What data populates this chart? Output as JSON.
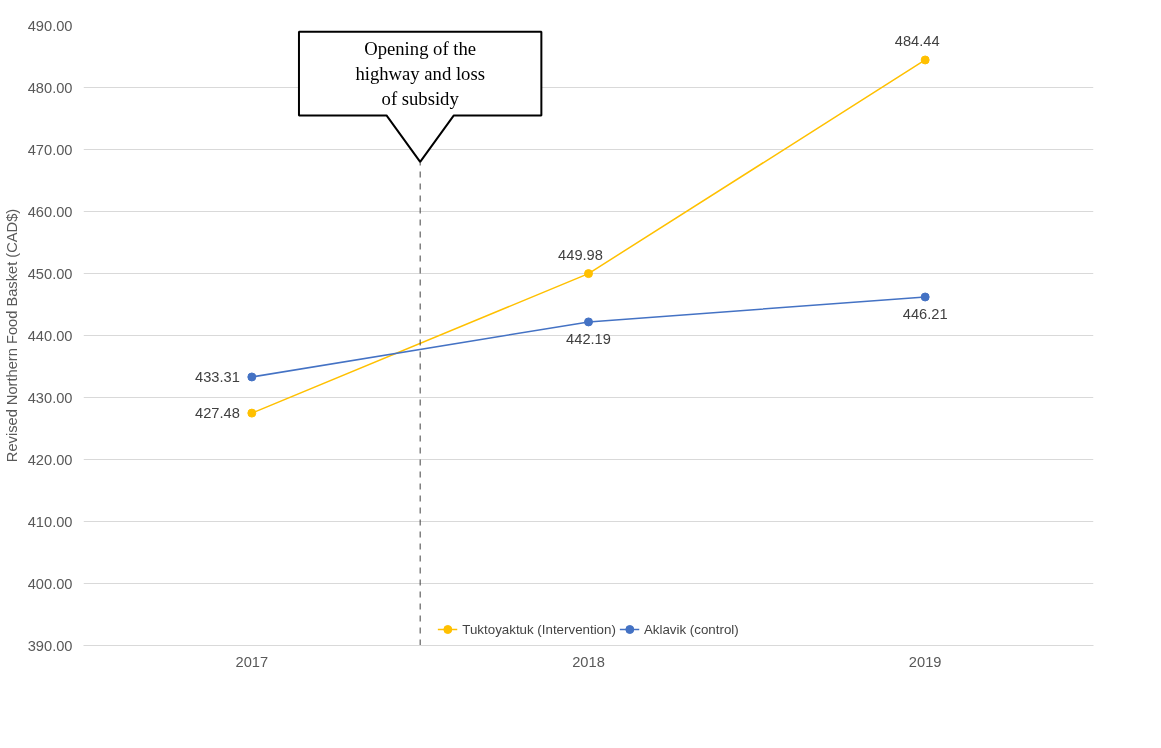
{
  "chart_data": {
    "type": "line",
    "ylabel": "Revised Northern Food Basket (CAD$)",
    "x": [
      2017,
      2018,
      2019
    ],
    "xlim": [
      2016.5,
      2019.5
    ],
    "xticks": [
      {
        "value": 2017,
        "label": "2017"
      },
      {
        "value": 2018,
        "label": "2018"
      },
      {
        "value": 2019,
        "label": "2019"
      }
    ],
    "ylim": [
      390,
      490
    ],
    "yticks": [
      {
        "value": 390,
        "label": "390.00"
      },
      {
        "value": 400,
        "label": "400.00"
      },
      {
        "value": 410,
        "label": "410.00"
      },
      {
        "value": 420,
        "label": "420.00"
      },
      {
        "value": 430,
        "label": "430.00"
      },
      {
        "value": 440,
        "label": "440.00"
      },
      {
        "value": 450,
        "label": "450.00"
      },
      {
        "value": 460,
        "label": "460.00"
      },
      {
        "value": 470,
        "label": "470.00"
      },
      {
        "value": 480,
        "label": "480.00"
      },
      {
        "value": 490,
        "label": "490.00"
      }
    ],
    "series": [
      {
        "name": "Tuktoyaktuk (Intervention)",
        "color": "#ffc000",
        "values": [
          427.48,
          449.98,
          484.44
        ]
      },
      {
        "name": "Aklavik (control)",
        "color": "#4472c4",
        "values": [
          433.31,
          442.19,
          446.21
        ]
      }
    ],
    "ref_lines": [
      {
        "axis": "x",
        "value": 2017.5,
        "label": "Opening of the highway and loss of subsidy",
        "color": "#404040",
        "line_style": "dashed"
      }
    ],
    "data_labels": true,
    "grid": "y",
    "legend": "bottom",
    "marker": "circle",
    "line_style": "solid"
  }
}
